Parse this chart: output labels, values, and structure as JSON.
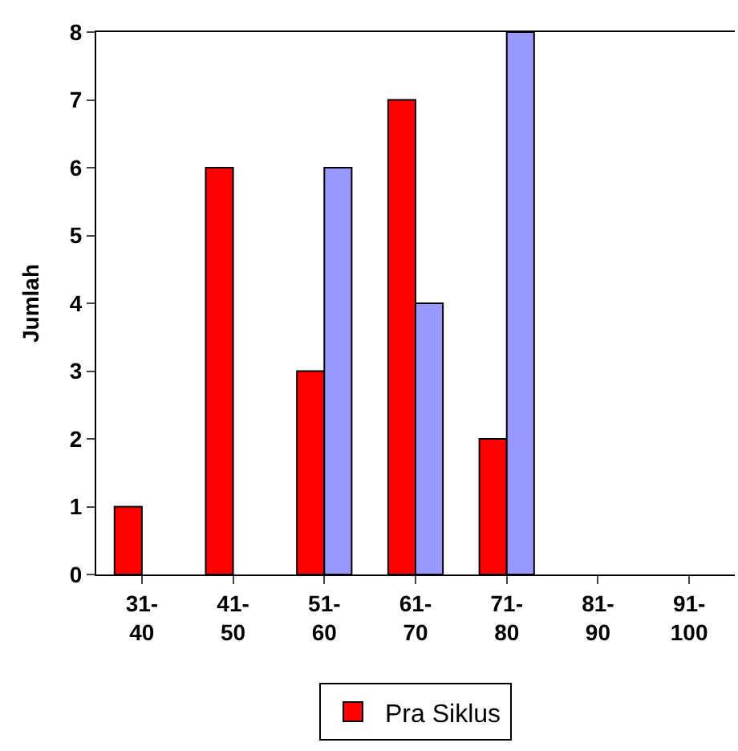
{
  "chart_data": {
    "type": "bar",
    "ylabel": "Jumlah",
    "categories": [
      "31-40",
      "41-50",
      "51-60",
      "61-70",
      "71-80",
      "81-90",
      "91-100"
    ],
    "series": [
      {
        "name": "Pra Siklus",
        "color": "#ff0000",
        "values": [
          1,
          6,
          3,
          7,
          2,
          0,
          0
        ]
      },
      {
        "color": "#9999ff",
        "values": [
          0,
          0,
          6,
          4,
          8,
          0,
          0
        ]
      }
    ],
    "ylim": [
      0,
      8
    ],
    "yticks": [
      0,
      1,
      2,
      3,
      4,
      5,
      6,
      7,
      8
    ],
    "grid": false,
    "legend": "bottom"
  }
}
